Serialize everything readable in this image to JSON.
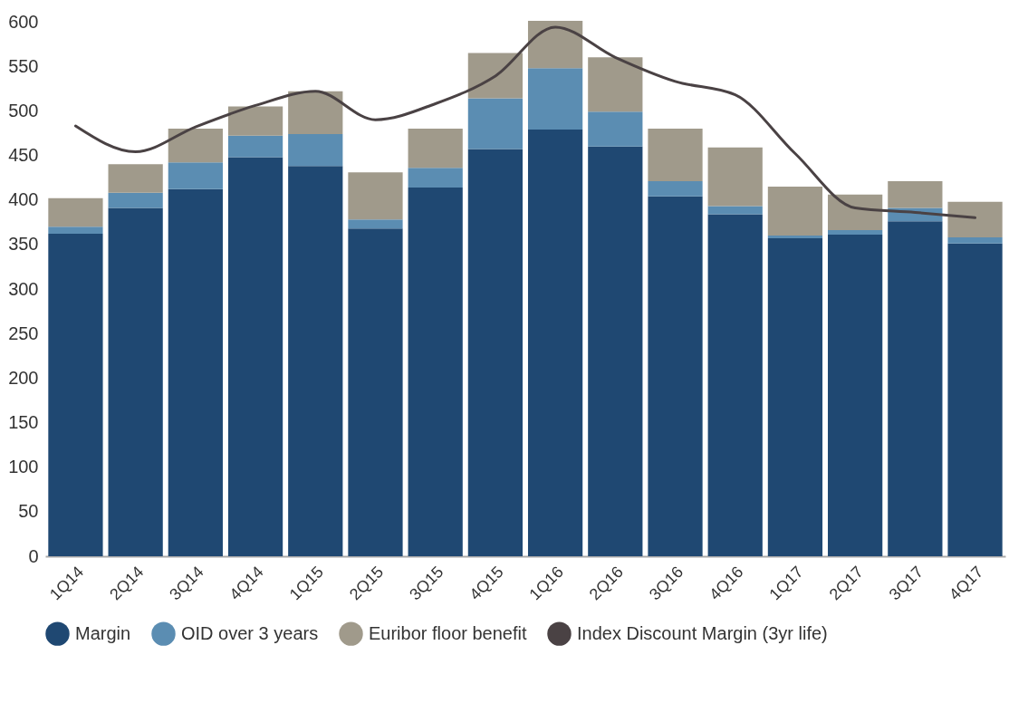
{
  "chart_data": {
    "type": "bar",
    "stacked": true,
    "legend": "bottom",
    "categories": [
      "1Q14",
      "2Q14",
      "3Q14",
      "4Q14",
      "1Q15",
      "2Q15",
      "3Q15",
      "4Q15",
      "1Q16",
      "2Q16",
      "3Q16",
      "4Q16",
      "1Q17",
      "2Q17",
      "3Q17",
      "4Q17"
    ],
    "ylim": [
      0,
      600
    ],
    "yticks": [
      0,
      50,
      100,
      150,
      200,
      250,
      300,
      350,
      400,
      450,
      500,
      550,
      600
    ],
    "series": [
      {
        "name": "Margin",
        "color": "#1f4872",
        "values": [
          362,
          391,
          412,
          448,
          438,
          368,
          414,
          457,
          479,
          460,
          404,
          384,
          357,
          361,
          376,
          351
        ]
      },
      {
        "name": "OID over 3 years",
        "color": "#5b8db2",
        "values": [
          8,
          17,
          30,
          24,
          36,
          10,
          22,
          57,
          69,
          39,
          17,
          9,
          3,
          5,
          15,
          7
        ]
      },
      {
        "name": "Euribor floor benefit",
        "color": "#a09a8b",
        "values": [
          32,
          32,
          38,
          33,
          48,
          53,
          44,
          51,
          53,
          61,
          59,
          66,
          55,
          40,
          30,
          40
        ]
      },
      {
        "name": "Index Discount Margin (3yr life)",
        "color": "#4a4244",
        "type": "line",
        "values": [
          483,
          454,
          482,
          506,
          522,
          490,
          508,
          539,
          594,
          560,
          533,
          518,
          452,
          391,
          386,
          380
        ]
      }
    ]
  }
}
